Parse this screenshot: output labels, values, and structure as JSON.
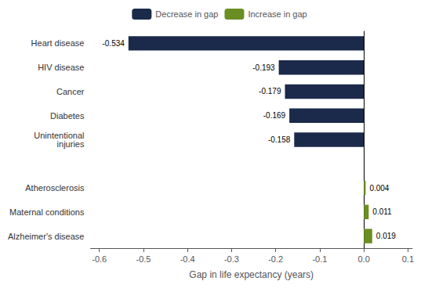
{
  "chart_data": {
    "type": "bar",
    "orientation": "horizontal",
    "xlabel": "Gap in life expectancy (years)",
    "categories": [
      "Heart disease",
      "HIV disease",
      "Cancer",
      "Diabetes",
      "Unintentional\ninjuries",
      null,
      "Atherosclerosis",
      "Maternal conditions",
      "Alzheimer's disease"
    ],
    "series": [
      {
        "name": "Decrease in gap",
        "color": "#1b2a4a",
        "values": [
          -0.534,
          -0.193,
          -0.179,
          -0.169,
          -0.158,
          null,
          null,
          null,
          null
        ]
      },
      {
        "name": "Increase in gap",
        "color": "#6b8e23",
        "values": [
          null,
          null,
          null,
          null,
          null,
          null,
          0.004,
          0.011,
          0.019
        ]
      }
    ],
    "xlim": [
      -0.62,
      0.11
    ],
    "xticks": [
      -0.6,
      -0.5,
      -0.4,
      -0.3,
      -0.2,
      -0.1,
      {
        "value": 0,
        "label": "0.0"
      },
      0.1
    ],
    "data_labels": true,
    "grid": false,
    "legend": "top"
  }
}
